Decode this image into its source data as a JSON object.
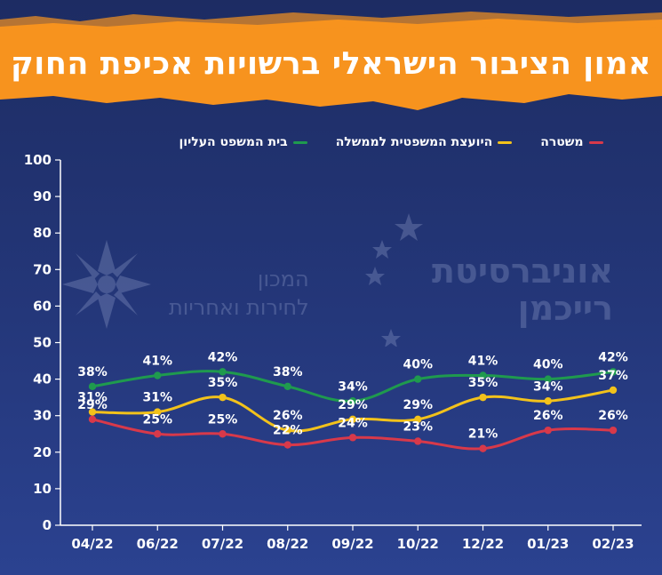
{
  "title": "אמון הציבור הישראלי ברשויות אכיפת החוק",
  "watermark": {
    "university_line1": "אוניברסיטת",
    "university_line2": "רייכמן",
    "institute_line1": "המכון",
    "institute_line2": "לחירות ואחריות"
  },
  "colors": {
    "supreme_court": "#1f9a4e",
    "attorney_general": "#f2c21b",
    "police": "#d8394a",
    "banner": "#f7931e"
  },
  "chart_data": {
    "type": "line",
    "categories": [
      "04/22",
      "06/22",
      "07/22",
      "08/22",
      "09/22",
      "10/22",
      "12/22",
      "01/23",
      "02/23"
    ],
    "ylim": [
      0,
      100
    ],
    "yticks": [
      0,
      10,
      20,
      30,
      40,
      50,
      60,
      70,
      80,
      90,
      100
    ],
    "legend_position": "top",
    "series": [
      {
        "name": "בית המשפט העליון",
        "color": "#1f9a4e",
        "values": [
          38,
          41,
          42,
          38,
          34,
          40,
          41,
          40,
          42
        ]
      },
      {
        "name": "היועצת המשפטית לממשלה",
        "color": "#f2c21b",
        "values": [
          31,
          31,
          35,
          26,
          29,
          29,
          35,
          34,
          37
        ]
      },
      {
        "name": "משטרה",
        "color": "#d8394a",
        "values": [
          29,
          25,
          25,
          22,
          24,
          23,
          21,
          26,
          26
        ]
      }
    ]
  }
}
